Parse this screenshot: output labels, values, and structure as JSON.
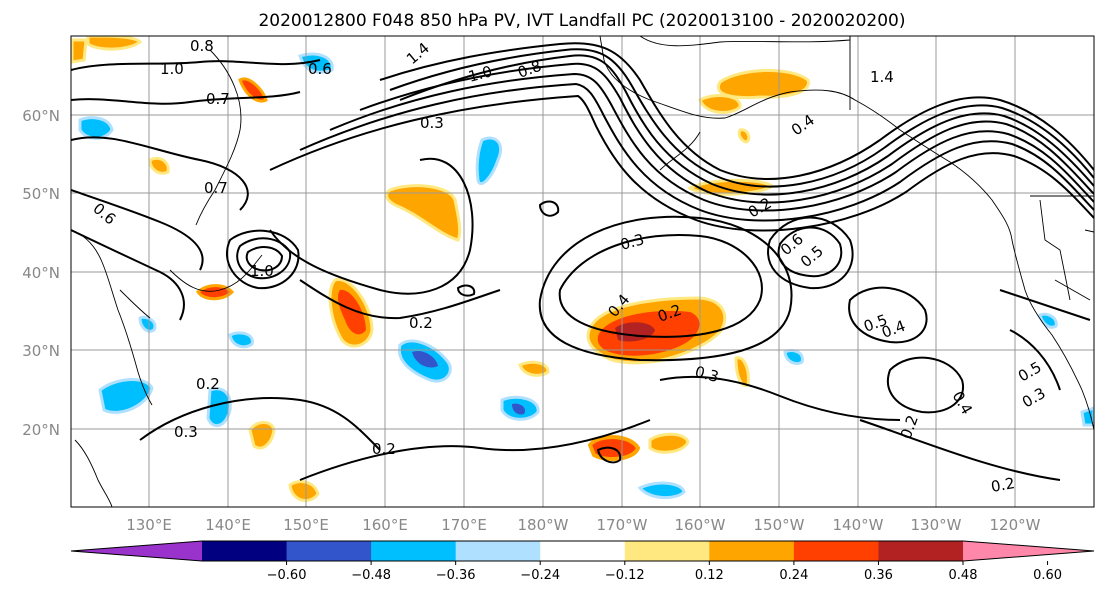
{
  "title": "2020012800 F048 850 hPa PV, IVT Landfall PC (2020013100 - 2020020200)",
  "lat_labels": [
    "60°N",
    "50°N",
    "40°N",
    "30°N",
    "20°N"
  ],
  "lon_labels": [
    "130°E",
    "140°E",
    "150°E",
    "160°E",
    "170°E",
    "180°W",
    "170°W",
    "160°W",
    "150°W",
    "140°W",
    "130°W",
    "120°W"
  ],
  "colorbar": {
    "ticks": [
      "−0.60",
      "−0.48",
      "−0.36",
      "−0.24",
      "−0.12",
      "0.12",
      "0.24",
      "0.36",
      "0.48",
      "0.60"
    ],
    "colors": [
      "#9933cc",
      "#000080",
      "#3355cc",
      "#00bfff",
      "#b0e0ff",
      "#ffffff",
      "#ffe880",
      "#ffa500",
      "#ff4000",
      "#b22222",
      "#ff88aa"
    ]
  },
  "contour_labels": [
    "0.8",
    "1.0",
    "0.6",
    "1.4",
    "0.3",
    "1.0",
    "0.8",
    "1.4",
    "0.4",
    "0.7",
    "0.6",
    "0.7",
    "1.0",
    "0.2",
    "0.3",
    "0.2",
    "0.6",
    "0.5",
    "0.2",
    "0.4",
    "0.5",
    "0.4",
    "0.2",
    "0.3",
    "0.2",
    "0.3",
    "0.2",
    "0.4",
    "0.5",
    "0.3",
    "0.2"
  ]
}
